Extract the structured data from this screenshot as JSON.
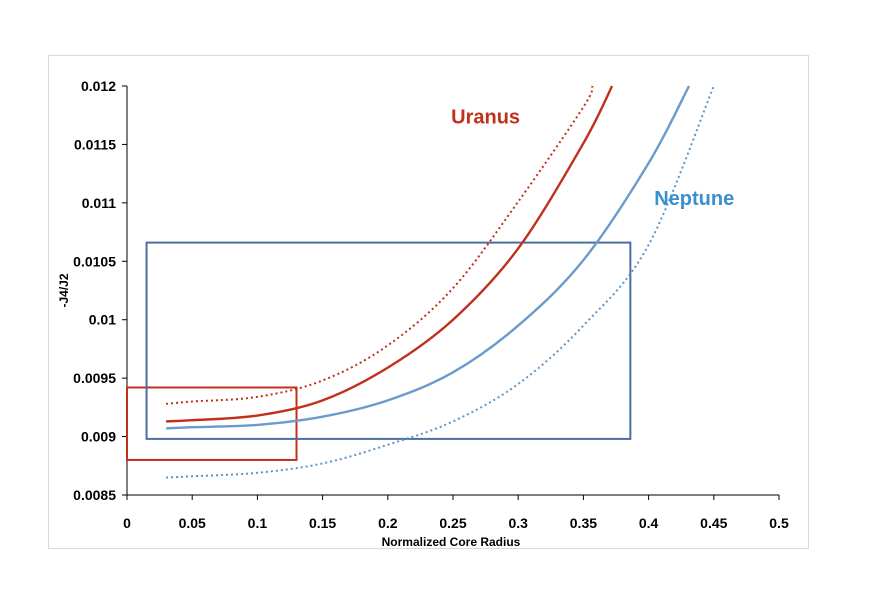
{
  "chart_data": {
    "type": "line",
    "xlabel": "Normalized Core Radius",
    "ylabel": "-J4/J2",
    "xlim": [
      0,
      0.5
    ],
    "ylim": [
      0.0085,
      0.012
    ],
    "x_ticks": [
      "0",
      "0.05",
      "0.1",
      "0.15",
      "0.2",
      "0.25",
      "0.3",
      "0.35",
      "0.4",
      "0.45",
      "0.5"
    ],
    "y_ticks": [
      "0.0085",
      "0.009",
      "0.0095",
      "0.01",
      "0.0105",
      "0.011",
      "0.0115",
      "0.012"
    ],
    "grid": false,
    "series": [
      {
        "name": "Uranus",
        "style": "solid",
        "color": "#c0301a",
        "x": [
          0.03,
          0.05,
          0.1,
          0.15,
          0.2,
          0.25,
          0.3,
          0.35,
          0.372
        ],
        "y": [
          0.00913,
          0.00914,
          0.00918,
          0.00931,
          0.00959,
          0.01,
          0.01061,
          0.01151,
          0.012
        ]
      },
      {
        "name": "Uranus",
        "style": "dotted",
        "color": "#c0301a",
        "x": [
          0.03,
          0.05,
          0.1,
          0.15,
          0.2,
          0.25,
          0.3,
          0.35,
          0.357
        ],
        "y": [
          0.00928,
          0.0093,
          0.00934,
          0.00948,
          0.00978,
          0.01027,
          0.01101,
          0.01182,
          0.012
        ]
      },
      {
        "name": "Neptune",
        "style": "solid",
        "color": "#6a9bcb",
        "x": [
          0.03,
          0.05,
          0.1,
          0.15,
          0.2,
          0.25,
          0.3,
          0.35,
          0.4,
          0.431
        ],
        "y": [
          0.00907,
          0.00908,
          0.0091,
          0.00917,
          0.00931,
          0.00955,
          0.00995,
          0.01051,
          0.01134,
          0.012
        ]
      },
      {
        "name": "Neptune",
        "style": "dotted",
        "color": "#5b95c9",
        "x": [
          0.03,
          0.05,
          0.1,
          0.15,
          0.2,
          0.25,
          0.3,
          0.35,
          0.4,
          0.45
        ],
        "y": [
          0.00865,
          0.00866,
          0.00869,
          0.00877,
          0.00893,
          0.00913,
          0.00945,
          0.00995,
          0.01064,
          0.012
        ]
      }
    ],
    "boxes": [
      {
        "name": "Uranus",
        "color": "#c0301a",
        "x0": 0,
        "x1": 0.13,
        "y0": 0.0088,
        "y1": 0.00942
      },
      {
        "name": "Neptune",
        "color": "#4a6fa0",
        "x0": 0.015,
        "x1": 0.386,
        "y0": 0.00898,
        "y1": 0.01066
      }
    ],
    "annotations": [
      {
        "text": "Uranus",
        "color": "#c0301a",
        "x": 0.275,
        "y": 0.01168
      },
      {
        "text": "Neptune",
        "color": "#3a8fd1",
        "x": 0.435,
        "y": 0.01098
      }
    ]
  }
}
